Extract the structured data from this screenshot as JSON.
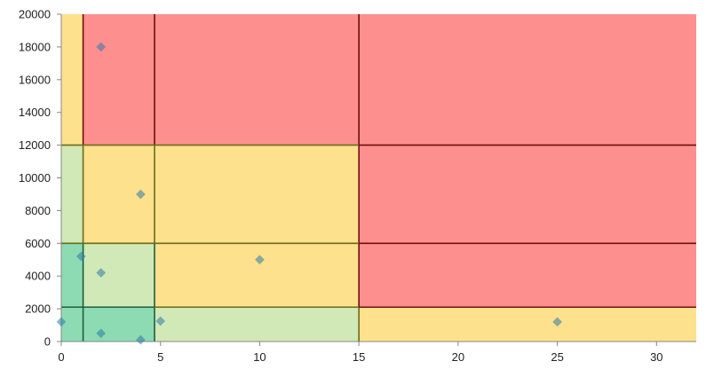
{
  "chart_data": {
    "type": "scatter",
    "title": "",
    "xlabel": "",
    "ylabel": "",
    "xlim": [
      0,
      32
    ],
    "ylim": [
      0,
      20000
    ],
    "x_ticks": [
      0,
      5,
      10,
      15,
      20,
      25,
      30
    ],
    "y_ticks": [
      0,
      2000,
      4000,
      6000,
      8000,
      10000,
      12000,
      14000,
      16000,
      18000,
      20000
    ],
    "x_tick_labels": [
      "0",
      "5",
      "10",
      "15",
      "20",
      "25",
      "30"
    ],
    "y_tick_labels": [
      "0",
      "2000",
      "4000",
      "6000",
      "8000",
      "10000",
      "12000",
      "14000",
      "16000",
      "18000",
      "20000"
    ],
    "grid": false,
    "legend": "none",
    "series": [
      {
        "marker": "diamond",
        "points": [
          {
            "x": 0,
            "y": 1200
          },
          {
            "x": 1,
            "y": 5200
          },
          {
            "x": 2,
            "y": 500
          },
          {
            "x": 2,
            "y": 4200
          },
          {
            "x": 2,
            "y": 18000
          },
          {
            "x": 4,
            "y": 100
          },
          {
            "x": 4,
            "y": 9000
          },
          {
            "x": 5,
            "y": 1250
          },
          {
            "x": 10,
            "y": 5000
          },
          {
            "x": 25,
            "y": 1200
          }
        ]
      }
    ],
    "zones": {
      "x_boundaries": [
        1.1,
        4.7,
        15
      ],
      "y_boundaries": [
        2100,
        6000,
        12000
      ],
      "colors": {
        "green": "#8ddbb2",
        "light_green": "#d0e9b6",
        "yellow": "#fde18d",
        "red": "#fe8f8f"
      },
      "grid_colors": [
        [
          "green",
          "green",
          "light_green",
          "yellow"
        ],
        [
          "green",
          "light_green",
          "yellow",
          "red"
        ],
        [
          "light_green",
          "yellow",
          "yellow",
          "red"
        ],
        [
          "yellow",
          "red",
          "red",
          "red"
        ]
      ],
      "line_colors": {
        "dark_green": "#1d5d3d",
        "olive": "#696b1a",
        "maroon": "#6d0f0f"
      }
    }
  }
}
